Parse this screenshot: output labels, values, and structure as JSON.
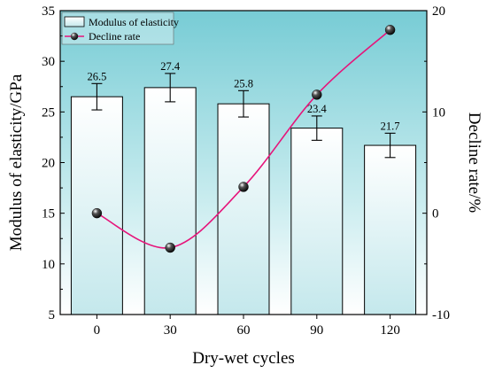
{
  "chart_data": {
    "type": "bar+line",
    "categories": [
      "0",
      "30",
      "60",
      "90",
      "120"
    ],
    "series": [
      {
        "name": "Modulus of elasticity",
        "type": "bar",
        "axis": "left",
        "values": [
          26.5,
          27.4,
          25.8,
          23.4,
          21.7
        ],
        "errors": [
          1.3,
          1.4,
          1.3,
          1.2,
          1.2
        ],
        "data_labels": [
          "26.5",
          "27.4",
          "25.8",
          "23.4",
          "21.7"
        ]
      },
      {
        "name": "Decline rate",
        "type": "line",
        "axis": "right",
        "values": [
          0,
          -3.4,
          2.6,
          11.7,
          18.1
        ],
        "smooth": true
      }
    ],
    "xlabel": "Dry-wet cycles",
    "ylabel": "Modulus of elasticity/GPa",
    "y2label": "Decline rate/%",
    "ylim": [
      5,
      35
    ],
    "y2lim": [
      -10,
      20
    ],
    "yticks": [
      "5",
      "10",
      "15",
      "20",
      "25",
      "30",
      "35"
    ],
    "y2ticks": [
      "-10",
      "0",
      "10",
      "20"
    ],
    "legend": "top-left",
    "colors": {
      "bg_top": "#79cfd7",
      "bg_bottom": "#ffffff",
      "line": "#e6147a",
      "marker": "#111111",
      "bar_fill_top": "#ffffff",
      "bar_fill_bottom": "#bfe6ea"
    }
  }
}
